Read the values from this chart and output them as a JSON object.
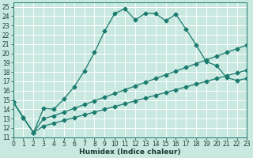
{
  "xlabel": "Humidex (Indice chaleur)",
  "bg_color": "#c8e8e0",
  "grid_color": "#ffffff",
  "line_color": "#1a7a6e",
  "xlim": [
    0,
    23
  ],
  "ylim": [
    11,
    25.5
  ],
  "xtick_labels": [
    "0",
    "1",
    "2",
    "3",
    "4",
    "5",
    "6",
    "7",
    "8",
    "9",
    "10",
    "11",
    "12",
    "13",
    "14",
    "15",
    "16",
    "17",
    "18",
    "19",
    "20",
    "21",
    "22",
    "23"
  ],
  "ytick_labels": [
    "11",
    "12",
    "13",
    "14",
    "15",
    "16",
    "17",
    "18",
    "19",
    "20",
    "21",
    "22",
    "23",
    "24",
    "25"
  ],
  "line1_x": [
    0,
    1,
    2,
    3,
    4,
    5,
    6,
    7,
    8,
    9,
    10,
    11,
    12,
    13,
    14,
    15,
    16,
    17,
    18,
    19,
    20,
    21,
    22,
    23
  ],
  "line1_y": [
    14.8,
    13.1,
    11.5,
    14.1,
    14.0,
    15.1,
    16.4,
    18.1,
    20.1,
    22.4,
    24.3,
    24.8,
    23.6,
    24.3,
    24.3,
    23.5,
    24.2,
    22.6,
    20.9,
    19.1,
    18.7,
    17.4,
    17.1,
    17.3
  ],
  "line2_x": [
    0,
    1,
    2,
    3,
    4,
    5,
    6,
    7,
    8,
    9,
    10,
    11,
    12,
    13,
    14,
    15,
    16,
    17,
    18,
    19,
    20,
    21,
    22,
    23
  ],
  "line2_y": [
    14.8,
    13.1,
    11.5,
    13.0,
    13.3,
    13.7,
    14.1,
    14.5,
    14.9,
    15.3,
    15.7,
    16.1,
    16.5,
    16.9,
    17.3,
    17.7,
    18.1,
    18.5,
    18.9,
    19.3,
    19.7,
    20.1,
    20.5,
    20.9
  ],
  "line3_x": [
    0,
    1,
    2,
    3,
    4,
    5,
    6,
    7,
    8,
    9,
    10,
    11,
    12,
    13,
    14,
    15,
    16,
    17,
    18,
    19,
    20,
    21,
    22,
    23
  ],
  "line3_y": [
    14.8,
    13.1,
    11.5,
    12.2,
    12.5,
    12.8,
    13.1,
    13.4,
    13.7,
    14.0,
    14.3,
    14.6,
    14.9,
    15.2,
    15.5,
    15.8,
    16.1,
    16.4,
    16.7,
    17.0,
    17.3,
    17.6,
    17.9,
    18.2
  ],
  "markersize": 2.5,
  "linewidth": 0.9,
  "tick_fontsize": 5.5,
  "label_fontsize": 6.5
}
